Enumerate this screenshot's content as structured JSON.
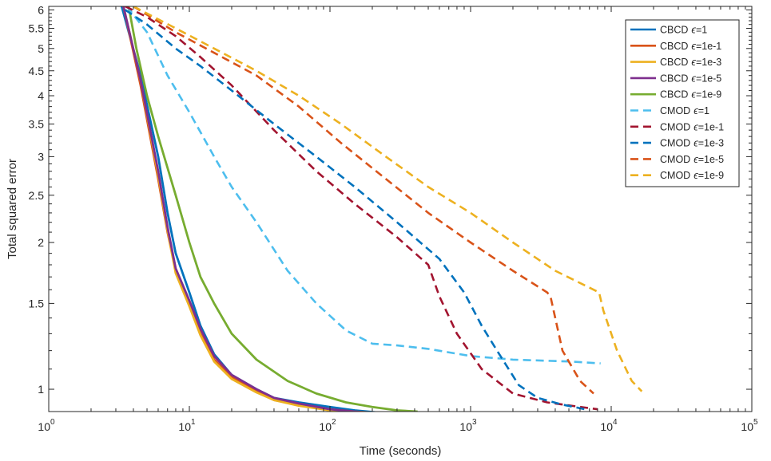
{
  "chart_data": {
    "type": "line",
    "title": "",
    "xlabel": "Time (seconds)",
    "ylabel": "Total squared error",
    "xscale": "log",
    "yscale": "log",
    "xlim": [
      1,
      100000
    ],
    "ylim": [
      0.9,
      6.1
    ],
    "grid": false,
    "legend_position": "top-right",
    "x_ticks": [
      {
        "value": 1,
        "base": "10",
        "exp": "0"
      },
      {
        "value": 10,
        "base": "10",
        "exp": "1"
      },
      {
        "value": 100,
        "base": "10",
        "exp": "2"
      },
      {
        "value": 1000,
        "base": "10",
        "exp": "3"
      },
      {
        "value": 10000,
        "base": "10",
        "exp": "4"
      },
      {
        "value": 100000,
        "base": "10",
        "exp": "5"
      }
    ],
    "y_ticks": [
      {
        "value": 1,
        "label": "1"
      },
      {
        "value": 1.5,
        "label": "1.5"
      },
      {
        "value": 2,
        "label": "2"
      },
      {
        "value": 2.5,
        "label": "2.5"
      },
      {
        "value": 3,
        "label": "3"
      },
      {
        "value": 3.5,
        "label": "3.5"
      },
      {
        "value": 4,
        "label": "4"
      },
      {
        "value": 4.5,
        "label": "4.5"
      },
      {
        "value": 5,
        "label": "5"
      },
      {
        "value": 5.5,
        "label": "5.5"
      },
      {
        "value": 6,
        "label": "6"
      }
    ],
    "series": [
      {
        "method": "CBCD",
        "eps": "=1",
        "color": "#0072BD",
        "dash": false,
        "x": [
          3.3,
          4.5,
          6,
          7,
          8,
          10,
          12,
          15,
          20,
          30,
          40,
          60,
          100,
          150,
          230
        ],
        "y": [
          6.1,
          4.4,
          3.0,
          2.3,
          1.9,
          1.58,
          1.35,
          1.18,
          1.07,
          1.0,
          0.96,
          0.94,
          0.92,
          0.905,
          0.895
        ]
      },
      {
        "method": "CBCD",
        "eps": "=1e-1",
        "color": "#D95319",
        "dash": false,
        "x": [
          3.4,
          4.5,
          6,
          7,
          8,
          10,
          12,
          15,
          20,
          30,
          40,
          60,
          100,
          150,
          210
        ],
        "y": [
          6.1,
          4.2,
          2.7,
          2.1,
          1.75,
          1.5,
          1.3,
          1.15,
          1.06,
          0.99,
          0.95,
          0.93,
          0.91,
          0.9,
          0.895
        ]
      },
      {
        "method": "CBCD",
        "eps": "=1e-3",
        "color": "#EDB120",
        "dash": false,
        "x": [
          3.4,
          4.5,
          6,
          7,
          8,
          10,
          12,
          15,
          20,
          30,
          40,
          60,
          100,
          140,
          180
        ],
        "y": [
          6.1,
          4.3,
          2.75,
          2.12,
          1.73,
          1.48,
          1.29,
          1.14,
          1.05,
          0.985,
          0.95,
          0.925,
          0.905,
          0.895,
          0.89
        ]
      },
      {
        "method": "CBCD",
        "eps": "=1e-5",
        "color": "#7E2F8E",
        "dash": false,
        "x": [
          3.4,
          4.5,
          6,
          7,
          8,
          10,
          12,
          15,
          20,
          30,
          40,
          60,
          100,
          150,
          230
        ],
        "y": [
          6.1,
          4.3,
          2.8,
          2.15,
          1.77,
          1.52,
          1.33,
          1.17,
          1.07,
          1.0,
          0.96,
          0.935,
          0.91,
          0.9,
          0.89
        ]
      },
      {
        "method": "CBCD",
        "eps": "=1e-9",
        "color": "#77AC30",
        "dash": false,
        "x": [
          3.7,
          4.2,
          5,
          6,
          8,
          10,
          12,
          15,
          20,
          30,
          50,
          80,
          130,
          200,
          300,
          420
        ],
        "y": [
          6.1,
          5.0,
          4.0,
          3.3,
          2.5,
          2.0,
          1.7,
          1.5,
          1.3,
          1.15,
          1.04,
          0.98,
          0.94,
          0.92,
          0.905,
          0.9
        ]
      },
      {
        "method": "CMOD",
        "eps": "=1",
        "color": "#4DBEEE",
        "dash": true,
        "x": [
          3.6,
          5,
          7,
          10,
          15,
          20,
          30,
          50,
          80,
          130,
          200,
          300,
          500,
          1000,
          2000,
          5000,
          8400
        ],
        "y": [
          6.1,
          5.4,
          4.4,
          3.7,
          3.0,
          2.6,
          2.2,
          1.75,
          1.5,
          1.32,
          1.24,
          1.23,
          1.21,
          1.17,
          1.15,
          1.14,
          1.13
        ]
      },
      {
        "method": "CMOD",
        "eps": "=1e-1",
        "color": "#A2142F",
        "dash": true,
        "x": [
          3.5,
          5,
          8,
          12,
          20,
          40,
          80,
          150,
          300,
          500,
          600,
          800,
          1200,
          2000,
          3500,
          6000,
          8000
        ],
        "y": [
          6.1,
          5.8,
          5.3,
          4.8,
          4.2,
          3.4,
          2.8,
          2.4,
          2.05,
          1.8,
          1.55,
          1.3,
          1.1,
          0.98,
          0.94,
          0.92,
          0.91
        ]
      },
      {
        "method": "CMOD",
        "eps": "=1e-3",
        "color": "#0072BD",
        "dash": true,
        "x": [
          3.5,
          5,
          8,
          12,
          20,
          40,
          80,
          150,
          300,
          600,
          900,
          1200,
          1600,
          2200,
          3000,
          4500,
          6500
        ],
        "y": [
          6.0,
          5.6,
          5.0,
          4.6,
          4.1,
          3.5,
          3.0,
          2.6,
          2.2,
          1.85,
          1.58,
          1.35,
          1.18,
          1.02,
          0.96,
          0.93,
          0.91
        ]
      },
      {
        "method": "CMOD",
        "eps": "=1e-5",
        "color": "#D95319",
        "dash": true,
        "x": [
          4,
          8,
          15,
          30,
          60,
          120,
          250,
          500,
          1000,
          2000,
          3500,
          3700,
          4500,
          6000,
          7500
        ],
        "y": [
          6.1,
          5.4,
          4.9,
          4.4,
          3.8,
          3.2,
          2.7,
          2.3,
          2.0,
          1.75,
          1.58,
          1.55,
          1.2,
          1.04,
          0.98
        ]
      },
      {
        "method": "CMOD",
        "eps": "=1e-9",
        "color": "#EDB120",
        "dash": true,
        "x": [
          4,
          8,
          15,
          30,
          60,
          120,
          250,
          500,
          1000,
          2000,
          4000,
          8200,
          8800,
          11000,
          14000,
          16500
        ],
        "y": [
          6.1,
          5.5,
          5.0,
          4.5,
          4.0,
          3.5,
          3.0,
          2.6,
          2.3,
          2.0,
          1.75,
          1.58,
          1.45,
          1.2,
          1.04,
          0.99
        ]
      }
    ]
  }
}
